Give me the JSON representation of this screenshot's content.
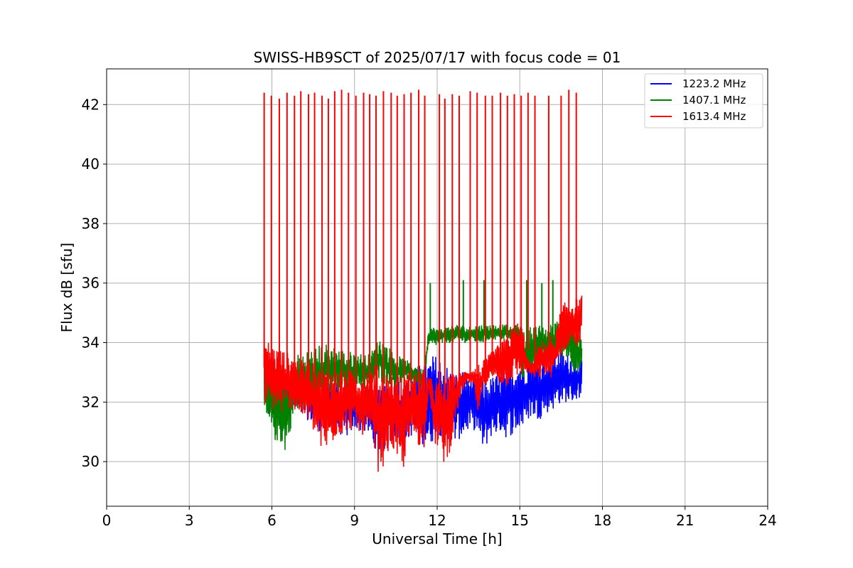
{
  "chart_data": {
    "type": "line",
    "title": "SWISS-HB9SCT of 2025/07/17 with focus code = 01",
    "xlabel": "Universal Time [h]",
    "ylabel": "Flux dB [sfu]",
    "xlim": [
      0,
      24
    ],
    "ylim": [
      28.5,
      43.2
    ],
    "xticks": [
      0,
      3,
      6,
      9,
      12,
      15,
      18,
      21,
      24
    ],
    "yticks": [
      30,
      32,
      34,
      36,
      38,
      40,
      42
    ],
    "grid": true,
    "legend_position": "top-right",
    "series": [
      {
        "name": "1223.2 MHz",
        "color": "#0000ff",
        "x": [
          5.72,
          5.9,
          6.1,
          6.3,
          6.5,
          6.7,
          6.9,
          7.1,
          7.3,
          7.5,
          7.7,
          7.9,
          8.1,
          8.3,
          8.5,
          8.7,
          8.9,
          9.1,
          9.3,
          9.5,
          9.7,
          9.9,
          10.1,
          10.3,
          10.5,
          10.7,
          10.9,
          11.1,
          11.3,
          11.5,
          11.7,
          11.9,
          12.1,
          12.3,
          12.5,
          12.7,
          12.9,
          13.1,
          13.3,
          13.5,
          13.7,
          13.9,
          14.1,
          14.3,
          14.5,
          14.7,
          14.9,
          15.1,
          15.3,
          15.5,
          15.7,
          15.9,
          16.1,
          16.3,
          16.5,
          16.7,
          16.9,
          17.1,
          17.25
        ],
        "y_low": [
          31.8,
          31.4,
          31.2,
          31.3,
          31.5,
          31.6,
          31.6,
          31.5,
          31.4,
          31.3,
          31.0,
          31.2,
          31.3,
          31.1,
          30.9,
          30.8,
          31.0,
          31.1,
          31.0,
          30.9,
          30.5,
          30.3,
          30.4,
          30.6,
          30.8,
          30.5,
          30.7,
          30.9,
          30.6,
          30.5,
          30.4,
          30.8,
          30.9,
          30.6,
          30.5,
          30.7,
          30.8,
          31.0,
          31.1,
          30.9,
          30.3,
          30.8,
          30.9,
          31.0,
          30.8,
          30.9,
          31.0,
          31.1,
          31.4,
          31.5,
          31.4,
          31.6,
          31.7,
          31.8,
          32.0,
          32.0,
          32.0,
          32.1,
          32.2
        ],
        "y_high": [
          34.2,
          33.6,
          33.4,
          33.3,
          33.2,
          33.0,
          33.1,
          33.0,
          32.9,
          32.8,
          32.7,
          32.7,
          32.8,
          32.7,
          32.6,
          32.7,
          32.6,
          32.5,
          32.6,
          32.7,
          32.5,
          32.4,
          32.6,
          32.8,
          32.9,
          32.8,
          32.7,
          32.9,
          33.2,
          33.4,
          33.5,
          33.6,
          33.5,
          33.3,
          33.1,
          33.0,
          33.1,
          33.0,
          32.9,
          32.8,
          32.7,
          32.8,
          32.9,
          33.0,
          33.2,
          33.3,
          33.4,
          33.5,
          33.6,
          33.5,
          33.6,
          33.7,
          33.7,
          33.8,
          33.7,
          33.6,
          33.6,
          33.5,
          33.4
        ]
      },
      {
        "name": "1407.1 MHz",
        "color": "#008000",
        "x": [
          5.72,
          5.9,
          6.1,
          6.3,
          6.5,
          6.7,
          6.9,
          7.1,
          7.3,
          7.5,
          7.7,
          7.9,
          8.1,
          8.3,
          8.5,
          8.7,
          8.9,
          9.1,
          9.3,
          9.5,
          9.7,
          9.9,
          10.1,
          10.3,
          10.5,
          10.7,
          10.9,
          11.1,
          11.3,
          11.5,
          11.7,
          11.9,
          12.1,
          12.3,
          12.5,
          12.7,
          12.9,
          13.1,
          13.3,
          13.5,
          13.7,
          13.9,
          14.1,
          14.3,
          14.5,
          14.7,
          14.9,
          15.1,
          15.3,
          15.5,
          15.7,
          15.9,
          16.1,
          16.3,
          16.5,
          16.7,
          16.9,
          17.1,
          17.25
        ],
        "y_low": [
          31.2,
          30.9,
          30.7,
          30.6,
          30.3,
          31.2,
          31.6,
          31.7,
          31.9,
          31.8,
          32.0,
          32.1,
          32.2,
          32.3,
          32.2,
          32.3,
          32.4,
          32.5,
          32.4,
          32.5,
          32.6,
          32.7,
          32.6,
          32.6,
          32.5,
          32.6,
          32.7,
          32.6,
          32.6,
          32.5,
          33.8,
          33.9,
          33.9,
          34.0,
          34.0,
          34.0,
          34.0,
          34.0,
          34.0,
          34.0,
          34.0,
          34.1,
          34.1,
          34.1,
          34.1,
          34.1,
          34.1,
          32.7,
          32.9,
          33.0,
          33.1,
          33.2,
          33.3,
          33.4,
          33.5,
          33.5,
          33.2,
          32.9,
          33.0
        ],
        "y_high": [
          34.0,
          33.4,
          33.2,
          33.0,
          32.9,
          33.4,
          33.6,
          33.7,
          33.8,
          33.8,
          33.9,
          34.0,
          33.9,
          33.9,
          33.8,
          33.7,
          33.7,
          33.7,
          33.6,
          33.6,
          33.8,
          34.2,
          34.0,
          33.8,
          33.6,
          33.5,
          33.4,
          33.3,
          33.2,
          33.1,
          34.6,
          34.5,
          34.5,
          34.5,
          34.6,
          34.6,
          34.6,
          34.5,
          34.6,
          34.6,
          34.6,
          34.6,
          34.6,
          34.6,
          34.6,
          34.5,
          34.6,
          34.5,
          34.5,
          34.6,
          34.6,
          34.6,
          34.6,
          34.7,
          34.8,
          34.9,
          34.8,
          34.3,
          34.2
        ],
        "spikes": [
          {
            "x": 11.75,
            "y": 36.0
          },
          {
            "x": 12.95,
            "y": 36.1
          },
          {
            "x": 13.7,
            "y": 36.1
          },
          {
            "x": 15.25,
            "y": 36.1
          },
          {
            "x": 15.8,
            "y": 36.0
          },
          {
            "x": 16.2,
            "y": 36.1
          }
        ]
      },
      {
        "name": "1613.4 MHz",
        "color": "#ff0000",
        "x": [
          5.72,
          5.9,
          6.1,
          6.3,
          6.5,
          6.7,
          6.9,
          7.1,
          7.3,
          7.5,
          7.7,
          7.9,
          8.1,
          8.3,
          8.5,
          8.7,
          8.9,
          9.1,
          9.3,
          9.5,
          9.7,
          9.9,
          10.1,
          10.3,
          10.5,
          10.7,
          10.9,
          11.1,
          11.3,
          11.5,
          11.7,
          11.9,
          12.1,
          12.3,
          12.5,
          12.7,
          12.9,
          13.1,
          13.3,
          13.5,
          13.7,
          13.9,
          14.1,
          14.3,
          14.5,
          14.7,
          14.9,
          15.1,
          15.3,
          15.5,
          15.7,
          15.9,
          16.1,
          16.3,
          16.5,
          16.7,
          16.9,
          17.1,
          17.25
        ],
        "y_low": [
          31.9,
          31.8,
          31.7,
          31.6,
          31.7,
          31.8,
          31.6,
          31.5,
          31.3,
          31.0,
          30.5,
          30.2,
          30.4,
          30.8,
          30.9,
          31.0,
          31.1,
          31.0,
          30.9,
          30.8,
          30.3,
          29.5,
          30.0,
          30.5,
          30.2,
          29.4,
          30.3,
          30.8,
          30.6,
          30.2,
          32.5,
          30.6,
          30.3,
          29.8,
          30.5,
          31.5,
          32.4,
          32.6,
          32.6,
          31.5,
          32.5,
          32.7,
          32.8,
          32.6,
          32.5,
          32.7,
          32.8,
          32.9,
          33.0,
          32.8,
          32.8,
          32.9,
          32.8,
          33.0,
          33.6,
          33.8,
          33.9,
          33.8,
          33.9
        ],
        "y_high": [
          34.4,
          34.0,
          33.9,
          33.8,
          33.7,
          33.6,
          33.5,
          33.4,
          33.4,
          33.3,
          33.2,
          33.2,
          33.2,
          33.1,
          33.1,
          33.0,
          33.1,
          33.0,
          33.1,
          33.2,
          33.3,
          33.2,
          33.1,
          33.0,
          33.0,
          32.9,
          33.0,
          33.1,
          33.0,
          33.3,
          32.8,
          32.8,
          32.7,
          32.8,
          32.9,
          33.0,
          33.0,
          33.1,
          33.1,
          33.3,
          33.4,
          33.6,
          33.8,
          34.0,
          34.2,
          34.5,
          34.7,
          34.6,
          33.4,
          33.3,
          34.0,
          34.1,
          34.2,
          34.3,
          35.2,
          35.4,
          35.5,
          35.5,
          35.6
        ],
        "spikes": [
          {
            "x": 5.72,
            "y": 42.4
          },
          {
            "x": 5.98,
            "y": 42.3
          },
          {
            "x": 6.27,
            "y": 42.2
          },
          {
            "x": 6.55,
            "y": 42.4
          },
          {
            "x": 6.82,
            "y": 42.3
          },
          {
            "x": 7.05,
            "y": 42.45
          },
          {
            "x": 7.33,
            "y": 42.35
          },
          {
            "x": 7.55,
            "y": 42.4
          },
          {
            "x": 7.82,
            "y": 42.3
          },
          {
            "x": 8.05,
            "y": 42.2
          },
          {
            "x": 8.28,
            "y": 42.45
          },
          {
            "x": 8.53,
            "y": 42.5
          },
          {
            "x": 8.78,
            "y": 42.4
          },
          {
            "x": 9.05,
            "y": 42.3
          },
          {
            "x": 9.33,
            "y": 42.4
          },
          {
            "x": 9.55,
            "y": 42.35
          },
          {
            "x": 9.78,
            "y": 42.3
          },
          {
            "x": 10.05,
            "y": 42.45
          },
          {
            "x": 10.33,
            "y": 42.4
          },
          {
            "x": 10.55,
            "y": 42.3
          },
          {
            "x": 10.8,
            "y": 42.35
          },
          {
            "x": 11.05,
            "y": 42.4
          },
          {
            "x": 11.33,
            "y": 42.5
          },
          {
            "x": 11.55,
            "y": 42.3
          },
          {
            "x": 12.08,
            "y": 42.35
          },
          {
            "x": 12.28,
            "y": 42.2
          },
          {
            "x": 12.55,
            "y": 42.35
          },
          {
            "x": 12.8,
            "y": 42.3
          },
          {
            "x": 13.2,
            "y": 42.45
          },
          {
            "x": 13.45,
            "y": 42.4
          },
          {
            "x": 13.75,
            "y": 42.3
          },
          {
            "x": 14.0,
            "y": 42.3
          },
          {
            "x": 14.3,
            "y": 42.4
          },
          {
            "x": 14.55,
            "y": 42.3
          },
          {
            "x": 14.8,
            "y": 42.35
          },
          {
            "x": 15.05,
            "y": 42.3
          },
          {
            "x": 15.3,
            "y": 42.4
          },
          {
            "x": 15.55,
            "y": 42.3
          },
          {
            "x": 16.05,
            "y": 42.3
          },
          {
            "x": 16.5,
            "y": 42.3
          },
          {
            "x": 16.78,
            "y": 42.5
          },
          {
            "x": 17.05,
            "y": 42.4
          }
        ]
      }
    ]
  }
}
